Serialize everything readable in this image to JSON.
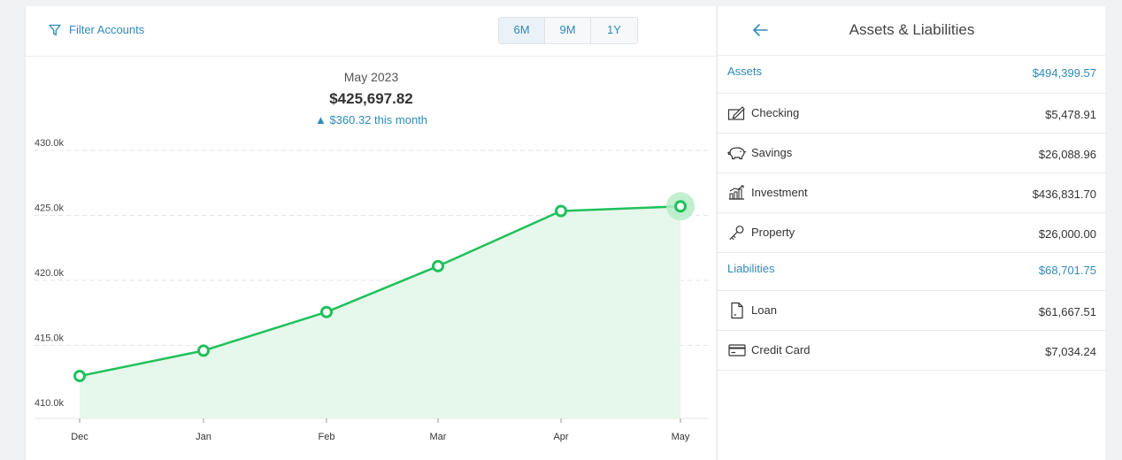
{
  "toolbar": {
    "filter_label": "Filter Accounts",
    "ranges": [
      "6M",
      "9M",
      "1Y"
    ],
    "active_range": "6M"
  },
  "summary": {
    "month": "May 2023",
    "total": "$425,697.82",
    "change": "▲ $360.32 this month"
  },
  "colors": {
    "accent": "#2e8bb8",
    "line": "#1fc15b",
    "area": "#e6f7eb",
    "highlight": "#b7ecc8"
  },
  "chart_data": {
    "type": "area",
    "x": [
      "Dec",
      "Jan",
      "Feb",
      "Mar",
      "Apr",
      "May"
    ],
    "y_ticks": [
      "430.0k",
      "425.0k",
      "420.0k",
      "415.0k",
      "410.0k"
    ],
    "series": [
      {
        "values": [
          412650,
          414600,
          417570,
          421100,
          425340,
          425697.82
        ]
      }
    ],
    "ylim": [
      410000,
      430000
    ],
    "highlighted_point": "May",
    "grid": true
  },
  "panel": {
    "title": "Assets & Liabilities",
    "back_icon": "arrow-left-icon",
    "assets": {
      "label": "Assets",
      "total": "$494,399.57",
      "items": [
        {
          "icon": "checkbook-icon",
          "label": "Checking",
          "value": "$5,478.91"
        },
        {
          "icon": "piggy-bank-icon",
          "label": "Savings",
          "value": "$26,088.96"
        },
        {
          "icon": "investment-chart-icon",
          "label": "Investment",
          "value": "$436,831.70"
        },
        {
          "icon": "key-icon",
          "label": "Property",
          "value": "$26,000.00"
        }
      ]
    },
    "liabilities": {
      "label": "Liabilities",
      "total": "$68,701.75",
      "items": [
        {
          "icon": "document-icon",
          "label": "Loan",
          "value": "$61,667.51"
        },
        {
          "icon": "credit-card-icon",
          "label": "Credit Card",
          "value": "$7,034.24"
        }
      ]
    }
  }
}
